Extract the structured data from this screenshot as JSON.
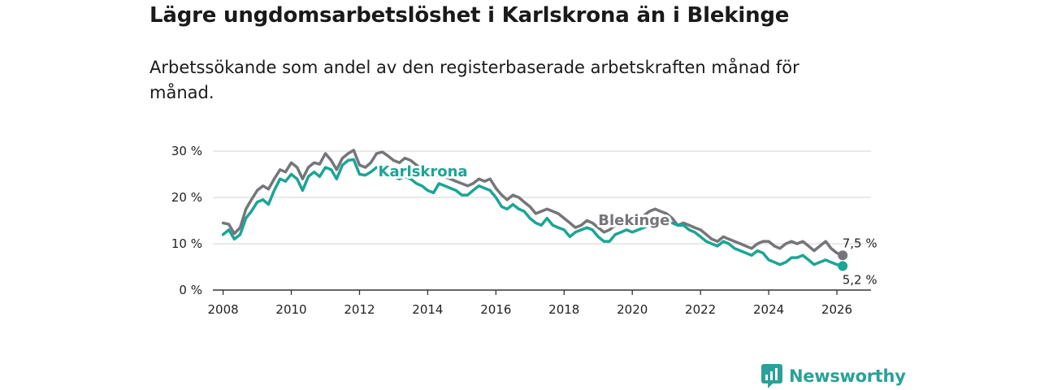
{
  "title": "Lägre ungdomsarbetslöshet i Karlskrona än i Blekinge",
  "subtitle": "Arbetssökande som andel av den registerbaserade arbetskraften månad för månad.",
  "brand": {
    "name": "Newsworthy",
    "icon": "bar-chart-icon",
    "color": "#2aa198"
  },
  "chart_data": {
    "type": "line",
    "title": "Lägre ungdomsarbetslöshet i Karlskrona än i Blekinge",
    "subtitle": "Arbetssökande som andel av den registerbaserade arbetskraften månad för månad.",
    "xlabel": "",
    "ylabel": "",
    "xlim": [
      2007.7,
      2027.0
    ],
    "ylim": [
      0,
      30
    ],
    "grid": true,
    "x_ticks": [
      2008,
      2010,
      2012,
      2014,
      2016,
      2018,
      2020,
      2022,
      2024,
      2026
    ],
    "x_tick_labels": [
      "2008",
      "2010",
      "2012",
      "2014",
      "2016",
      "2018",
      "2020",
      "2022",
      "2024",
      "2026"
    ],
    "y_ticks": [
      0,
      10,
      20,
      30
    ],
    "y_tick_labels": [
      "0 %",
      "10 %",
      "20 %",
      "30 %"
    ],
    "series": [
      {
        "name": "Blekinge",
        "color": "#75757a",
        "x": [
          2008.0,
          2008.17,
          2008.33,
          2008.5,
          2008.67,
          2008.83,
          2009.0,
          2009.17,
          2009.33,
          2009.5,
          2009.67,
          2009.83,
          2010.0,
          2010.17,
          2010.33,
          2010.5,
          2010.67,
          2010.83,
          2011.0,
          2011.17,
          2011.33,
          2011.5,
          2011.67,
          2011.83,
          2012.0,
          2012.17,
          2012.33,
          2012.5,
          2012.67,
          2012.83,
          2013.0,
          2013.17,
          2013.33,
          2013.5,
          2013.67,
          2013.83,
          2014.0,
          2014.17,
          2014.33,
          2014.5,
          2014.67,
          2014.83,
          2015.0,
          2015.17,
          2015.33,
          2015.5,
          2015.67,
          2015.83,
          2016.0,
          2016.17,
          2016.33,
          2016.5,
          2016.67,
          2016.83,
          2017.0,
          2017.17,
          2017.33,
          2017.5,
          2017.67,
          2017.83,
          2018.0,
          2018.17,
          2018.33,
          2018.5,
          2018.67,
          2018.83,
          2019.0,
          2019.17,
          2019.33,
          2019.5,
          2019.67,
          2019.83,
          2020.0,
          2020.17,
          2020.33,
          2020.5,
          2020.67,
          2020.83,
          2021.0,
          2021.17,
          2021.33,
          2021.5,
          2021.67,
          2021.83,
          2022.0,
          2022.17,
          2022.33,
          2022.5,
          2022.67,
          2022.83,
          2023.0,
          2023.17,
          2023.33,
          2023.5,
          2023.67,
          2023.83,
          2024.0,
          2024.17,
          2024.33,
          2024.5,
          2024.67,
          2024.83,
          2025.0,
          2025.17,
          2025.33,
          2025.5,
          2025.67,
          2025.83,
          2026.0,
          2026.17
        ],
        "y": [
          14.5,
          14.2,
          12.2,
          13.5,
          17.5,
          19.5,
          21.5,
          22.5,
          21.8,
          24.0,
          26.0,
          25.5,
          27.5,
          26.5,
          24.0,
          26.5,
          27.5,
          27.2,
          29.5,
          28.0,
          26.0,
          28.5,
          29.5,
          30.2,
          27.0,
          26.5,
          27.5,
          29.5,
          29.8,
          29.0,
          28.0,
          27.5,
          28.5,
          28.0,
          27.0,
          26.0,
          25.5,
          24.5,
          25.0,
          24.5,
          24.0,
          23.5,
          23.0,
          22.5,
          23.0,
          24.0,
          23.5,
          24.0,
          22.0,
          20.5,
          19.5,
          20.5,
          20.0,
          19.0,
          18.0,
          16.5,
          17.0,
          17.5,
          17.0,
          16.5,
          15.5,
          14.5,
          13.5,
          14.0,
          15.0,
          14.5,
          13.5,
          12.5,
          13.0,
          14.0,
          14.5,
          15.0,
          15.5,
          15.5,
          16.0,
          17.0,
          17.5,
          17.0,
          16.5,
          15.5,
          14.0,
          14.5,
          14.0,
          13.5,
          13.0,
          12.0,
          11.0,
          10.5,
          11.5,
          11.0,
          10.5,
          10.0,
          9.5,
          9.0,
          10.0,
          10.5,
          10.5,
          9.5,
          9.0,
          10.0,
          10.5,
          10.0,
          10.5,
          9.5,
          8.5,
          9.5,
          10.5,
          9.0,
          8.0,
          7.5
        ]
      },
      {
        "name": "Karlskrona",
        "color": "#1ba596",
        "x": [
          2008.0,
          2008.17,
          2008.33,
          2008.5,
          2008.67,
          2008.83,
          2009.0,
          2009.17,
          2009.33,
          2009.5,
          2009.67,
          2009.83,
          2010.0,
          2010.17,
          2010.33,
          2010.5,
          2010.67,
          2010.83,
          2011.0,
          2011.17,
          2011.33,
          2011.5,
          2011.67,
          2011.83,
          2012.0,
          2012.17,
          2012.33,
          2012.5,
          2012.67,
          2012.83,
          2013.0,
          2013.17,
          2013.33,
          2013.5,
          2013.67,
          2013.83,
          2014.0,
          2014.17,
          2014.33,
          2014.5,
          2014.67,
          2014.83,
          2015.0,
          2015.17,
          2015.33,
          2015.5,
          2015.67,
          2015.83,
          2016.0,
          2016.17,
          2016.33,
          2016.5,
          2016.67,
          2016.83,
          2017.0,
          2017.17,
          2017.33,
          2017.5,
          2017.67,
          2017.83,
          2018.0,
          2018.17,
          2018.33,
          2018.5,
          2018.67,
          2018.83,
          2019.0,
          2019.17,
          2019.33,
          2019.5,
          2019.67,
          2019.83,
          2020.0,
          2020.17,
          2020.33,
          2020.5,
          2020.67,
          2020.83,
          2021.0,
          2021.17,
          2021.33,
          2021.5,
          2021.67,
          2021.83,
          2022.0,
          2022.17,
          2022.33,
          2022.5,
          2022.67,
          2022.83,
          2023.0,
          2023.17,
          2023.33,
          2023.5,
          2023.67,
          2023.83,
          2024.0,
          2024.17,
          2024.33,
          2024.5,
          2024.67,
          2024.83,
          2025.0,
          2025.17,
          2025.33,
          2025.5,
          2025.67,
          2025.83,
          2026.0,
          2026.17
        ],
        "y": [
          12.0,
          13.0,
          11.0,
          12.0,
          15.5,
          17.0,
          19.0,
          19.5,
          18.5,
          21.5,
          24.0,
          23.5,
          25.0,
          24.0,
          21.5,
          24.5,
          25.5,
          24.5,
          26.5,
          26.0,
          24.0,
          27.0,
          28.0,
          28.2,
          25.0,
          24.8,
          25.5,
          26.5,
          26.0,
          25.0,
          24.5,
          24.0,
          24.5,
          24.0,
          23.0,
          22.5,
          21.5,
          21.0,
          23.0,
          22.5,
          22.0,
          21.5,
          20.5,
          20.5,
          21.5,
          22.5,
          22.0,
          21.5,
          20.0,
          18.0,
          17.5,
          18.5,
          17.5,
          17.0,
          15.5,
          14.5,
          14.0,
          15.5,
          14.0,
          13.5,
          13.0,
          11.5,
          12.5,
          13.0,
          13.5,
          13.0,
          11.5,
          10.5,
          10.5,
          12.0,
          12.5,
          13.0,
          12.5,
          13.0,
          13.5,
          14.0,
          15.0,
          15.5,
          15.0,
          14.5,
          14.0,
          14.0,
          13.0,
          12.5,
          11.5,
          10.5,
          10.0,
          9.5,
          10.5,
          10.0,
          9.0,
          8.5,
          8.0,
          7.5,
          8.5,
          8.0,
          6.5,
          6.0,
          5.5,
          6.0,
          7.0,
          7.0,
          7.5,
          6.5,
          5.5,
          6.0,
          6.5,
          6.0,
          5.5,
          5.2
        ]
      }
    ],
    "annotations": {
      "blekinge_label": "Blekinge",
      "karlskrona_label": "Karlskrona",
      "blekinge_end": "7,5 %",
      "karlskrona_end": "5,2 %"
    }
  }
}
